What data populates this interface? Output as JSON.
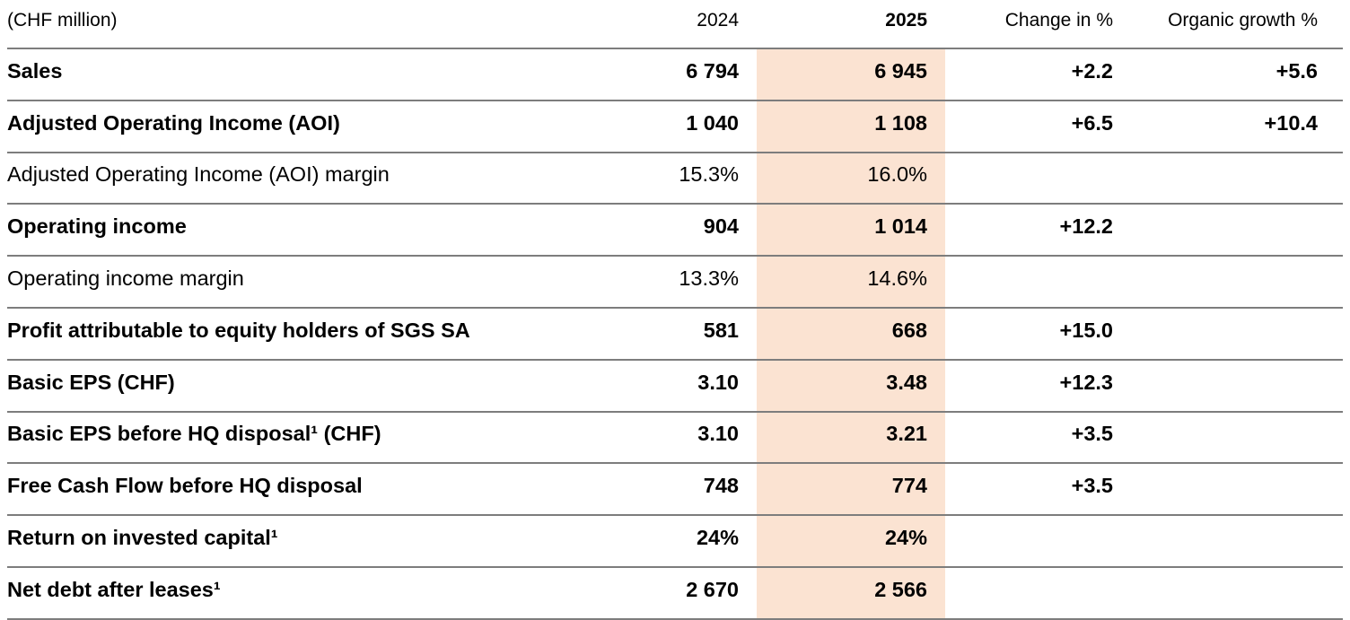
{
  "table": {
    "unit_label": "(CHF million)",
    "columns": {
      "year_prev": "2024",
      "year_curr": "2025",
      "change": "Change in %",
      "organic": "Organic growth %"
    },
    "highlight_color": "#fbe3d2",
    "rule_color": "#7d7d7d",
    "rows": [
      {
        "label": "Sales",
        "bold": true,
        "y2024": "6 794",
        "y2025": "6 945",
        "change": "+2.2",
        "organic": "+5.6"
      },
      {
        "label": "Adjusted Operating Income (AOI)",
        "bold": true,
        "y2024": "1 040",
        "y2025": "1 108",
        "change": "+6.5",
        "organic": "+10.4"
      },
      {
        "label": "Adjusted Operating Income (AOI) margin",
        "bold": false,
        "y2024": "15.3%",
        "y2025": "16.0%",
        "change": "",
        "organic": ""
      },
      {
        "label": "Operating income",
        "bold": true,
        "y2024": "904",
        "y2025": "1 014",
        "change": "+12.2",
        "organic": ""
      },
      {
        "label": "Operating income margin",
        "bold": false,
        "y2024": "13.3%",
        "y2025": "14.6%",
        "change": "",
        "organic": ""
      },
      {
        "label": "Profit attributable to equity holders of SGS SA",
        "bold": true,
        "y2024": "581",
        "y2025": "668",
        "change": "+15.0",
        "organic": ""
      },
      {
        "label": "Basic EPS (CHF)",
        "bold": true,
        "y2024": "3.10",
        "y2025": "3.48",
        "change": "+12.3",
        "organic": ""
      },
      {
        "label": "Basic EPS before HQ disposal¹ (CHF)",
        "bold": true,
        "y2024": "3.10",
        "y2025": "3.21",
        "change": "+3.5",
        "organic": ""
      },
      {
        "label": "Free Cash Flow before HQ disposal",
        "bold": true,
        "y2024": "748",
        "y2025": "774",
        "change": "+3.5",
        "organic": ""
      },
      {
        "label": "Return on invested capital¹",
        "bold": true,
        "y2024": "24%",
        "y2025": "24%",
        "change": "",
        "organic": ""
      },
      {
        "label": "Net debt after leases¹",
        "bold": true,
        "y2024": "2 670",
        "y2025": "2 566",
        "change": "",
        "organic": ""
      }
    ]
  }
}
